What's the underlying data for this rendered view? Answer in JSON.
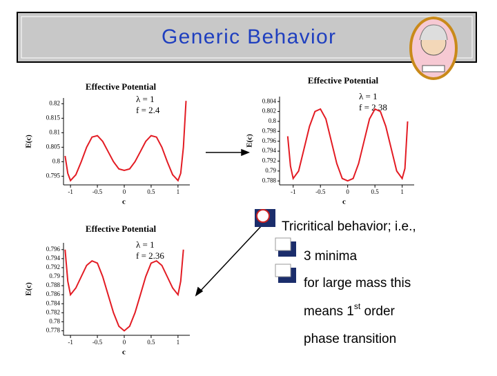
{
  "title": "Generic Behavior",
  "bullets": [
    "Tricritical behavior; i.e.,",
    "3 minima",
    "for large mass this"
  ],
  "continuation": [
    {
      "before": "means 1",
      "sup": "st",
      "after": " order"
    },
    "phase transition"
  ],
  "chart_data": [
    {
      "type": "line",
      "title": "Effective Potential",
      "annotations": [
        "λ = 1",
        "f = 2.4"
      ],
      "x_label": "c",
      "y_label": "E(c)",
      "color": "#e31b23",
      "x": [
        -1.1,
        -1.05,
        -1,
        -0.9,
        -0.8,
        -0.7,
        -0.6,
        -0.5,
        -0.4,
        -0.3,
        -0.2,
        -0.1,
        0,
        0.1,
        0.2,
        0.3,
        0.4,
        0.5,
        0.6,
        0.7,
        0.8,
        0.9,
        1,
        1.05,
        1.1,
        1.15
      ],
      "values": [
        0.802,
        0.796,
        0.7935,
        0.7955,
        0.8,
        0.805,
        0.8085,
        0.809,
        0.807,
        0.8035,
        0.8,
        0.7975,
        0.797,
        0.7975,
        0.8,
        0.8035,
        0.807,
        0.809,
        0.8085,
        0.805,
        0.8,
        0.7955,
        0.7935,
        0.796,
        0.805,
        0.821
      ],
      "xlim": [
        -1.13,
        1.22
      ],
      "xticks": [
        -1,
        -0.5,
        0,
        0.5,
        1
      ],
      "ylim": [
        0.792,
        0.822
      ],
      "yticks": [
        0.795,
        0.8,
        0.805,
        0.81,
        0.815,
        0.82
      ]
    },
    {
      "type": "line",
      "title": "Effective Potential",
      "annotations": [
        "λ = 1",
        "f = 2.38"
      ],
      "x_label": "c",
      "y_label": "E(c)",
      "color": "#e31b23",
      "x": [
        -1.1,
        -1.05,
        -1,
        -0.9,
        -0.8,
        -0.7,
        -0.6,
        -0.5,
        -0.4,
        -0.3,
        -0.2,
        -0.1,
        0,
        0.1,
        0.2,
        0.3,
        0.4,
        0.5,
        0.6,
        0.7,
        0.8,
        0.9,
        1,
        1.05,
        1.1
      ],
      "values": [
        0.797,
        0.791,
        0.7885,
        0.79,
        0.7945,
        0.799,
        0.802,
        0.8025,
        0.8005,
        0.796,
        0.7915,
        0.7885,
        0.788,
        0.7885,
        0.7915,
        0.796,
        0.8005,
        0.8025,
        0.802,
        0.799,
        0.7945,
        0.79,
        0.7885,
        0.7905,
        0.8
      ],
      "xlim": [
        -1.25,
        1.22
      ],
      "xticks": [
        -1,
        -0.5,
        0,
        0.5,
        1
      ],
      "ylim": [
        0.7872,
        0.805
      ],
      "yticks": [
        0.788,
        0.79,
        0.792,
        0.794,
        0.796,
        0.798,
        0.8,
        0.802,
        0.804
      ]
    },
    {
      "type": "line",
      "title": "Effective Potential",
      "annotations": [
        "λ = 1",
        "f = 2.36"
      ],
      "x_label": "c",
      "y_label": "E(c)",
      "color": "#e31b23",
      "x": [
        -1.1,
        -1.05,
        -1,
        -0.9,
        -0.8,
        -0.7,
        -0.6,
        -0.5,
        -0.4,
        -0.3,
        -0.2,
        -0.1,
        0,
        0.1,
        0.2,
        0.3,
        0.4,
        0.5,
        0.6,
        0.7,
        0.8,
        0.9,
        1,
        1.05,
        1.1
      ],
      "values": [
        0.796,
        0.789,
        0.786,
        0.7875,
        0.79,
        0.7925,
        0.7935,
        0.793,
        0.79,
        0.786,
        0.782,
        0.779,
        0.778,
        0.779,
        0.782,
        0.786,
        0.79,
        0.793,
        0.7935,
        0.7925,
        0.79,
        0.7875,
        0.786,
        0.789,
        0.796
      ],
      "xlim": [
        -1.13,
        1.22
      ],
      "xticks": [
        -1,
        -0.5,
        0,
        0.5,
        1
      ],
      "ylim": [
        0.777,
        0.7975
      ],
      "yticks": [
        0.778,
        0.78,
        0.782,
        0.784,
        0.786,
        0.788,
        0.79,
        0.792,
        0.794,
        0.796
      ]
    }
  ]
}
